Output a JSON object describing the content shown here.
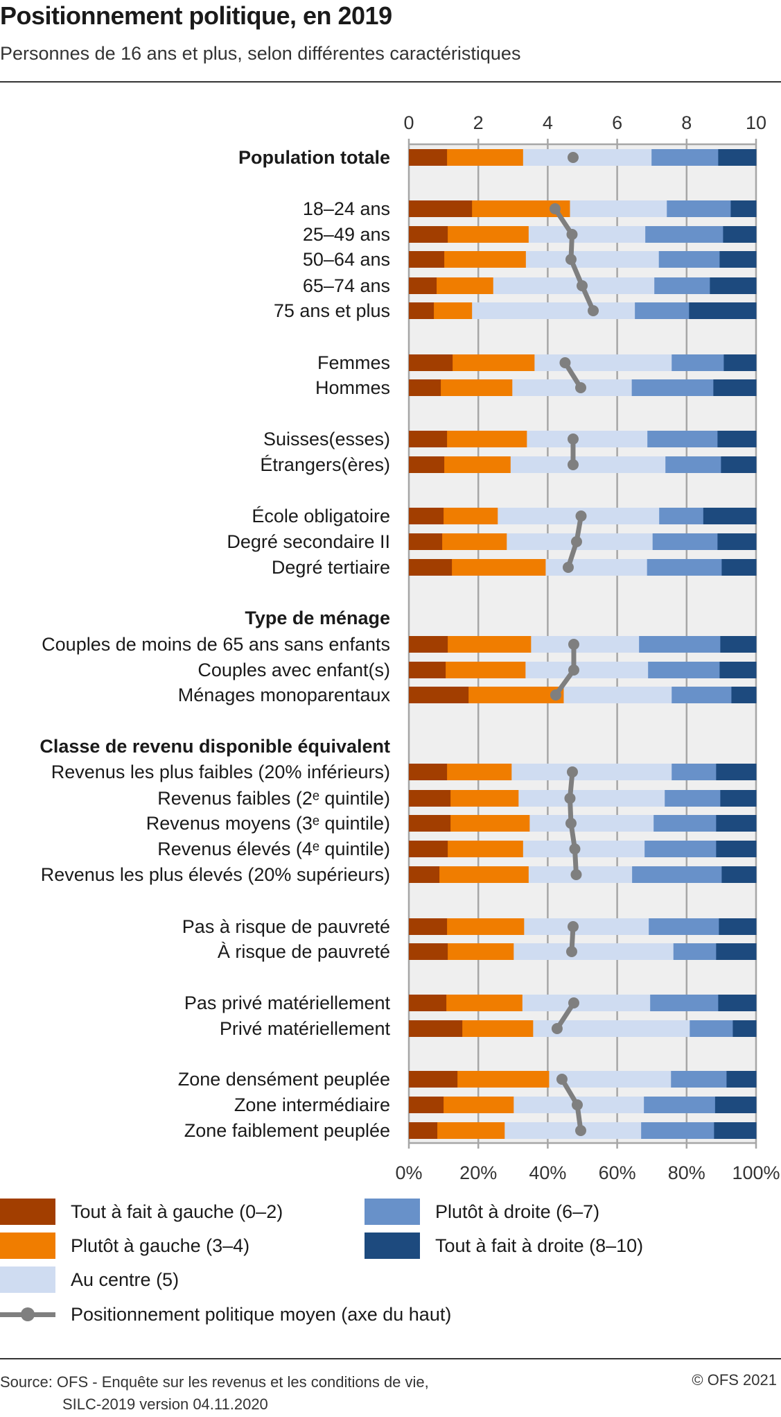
{
  "header": {
    "title": "Positionnement politique, en 2019",
    "subtitle": "Personnes de 16 ans et plus, selon différentes caractéristiques"
  },
  "chart_data": {
    "type": "bar",
    "orientation": "horizontal",
    "stacked": true,
    "title": "Positionnement politique, en 2019",
    "subtitle": "Personnes de 16 ans et plus, selon différentes caractéristiques",
    "xlabel_bottom": "",
    "xlabel_top": "",
    "bottom_axis": {
      "range": [
        0,
        100
      ],
      "ticks": [
        "0%",
        "20%",
        "40%",
        "60%",
        "80%",
        "100%"
      ],
      "unit": "%"
    },
    "top_axis": {
      "range": [
        0,
        10
      ],
      "ticks": [
        "0",
        "2",
        "4",
        "6",
        "8",
        "10"
      ]
    },
    "grid": true,
    "legend_position": "bottom",
    "series": [
      {
        "name": "Tout à fait à gauche (0–2)",
        "color": "#a23e00"
      },
      {
        "name": "Plutôt à gauche (3–4)",
        "color": "#f07d00"
      },
      {
        "name": "Au centre (5)",
        "color": "#cfdcf1"
      },
      {
        "name": "Plutôt à droite (6–7)",
        "color": "#6891c9"
      },
      {
        "name": "Tout à fait à droite (8–10)",
        "color": "#1d4a7e"
      }
    ],
    "mean_series": {
      "name": "Positionnement politique moyen (axe du haut)",
      "color": "#7f7f7f"
    },
    "rows": [
      {
        "label": "Population totale",
        "bold": true,
        "values": [
          11.0,
          21.9,
          37.0,
          19.2,
          10.9
        ],
        "mean": 4.73,
        "group": 0
      },
      {
        "label": "18–24 ans",
        "values": [
          18.2,
          28.2,
          27.9,
          18.4,
          7.3
        ],
        "mean": 4.21,
        "group": 1
      },
      {
        "label": "25–49 ans",
        "values": [
          11.2,
          23.3,
          33.6,
          22.4,
          9.5
        ],
        "mean": 4.7,
        "group": 1
      },
      {
        "label": "50–64 ans",
        "values": [
          10.2,
          23.5,
          38.3,
          17.5,
          10.5
        ],
        "mean": 4.67,
        "group": 1
      },
      {
        "label": "65–74 ans",
        "values": [
          8.0,
          16.3,
          46.4,
          16.0,
          13.3
        ],
        "mean": 4.99,
        "group": 1
      },
      {
        "label": "75 ans et plus",
        "values": [
          7.2,
          11.0,
          46.9,
          15.6,
          19.3
        ],
        "mean": 5.31,
        "group": 1
      },
      {
        "label": "Femmes",
        "values": [
          12.6,
          23.6,
          39.5,
          15.0,
          9.3
        ],
        "mean": 4.5,
        "group": 2
      },
      {
        "label": "Hommes",
        "values": [
          9.2,
          20.6,
          34.4,
          23.5,
          12.3
        ],
        "mean": 4.95,
        "group": 2
      },
      {
        "label": "Suisses(esses)",
        "values": [
          11.0,
          23.0,
          34.7,
          20.2,
          11.1
        ],
        "mean": 4.73,
        "group": 3
      },
      {
        "label": "Étrangers(ères)",
        "values": [
          10.2,
          19.1,
          44.6,
          16.0,
          10.1
        ],
        "mean": 4.73,
        "group": 3
      },
      {
        "label": "École obligatoire",
        "values": [
          10.0,
          15.6,
          46.5,
          12.7,
          15.2
        ],
        "mean": 4.96,
        "group": 4
      },
      {
        "label": "Degré secondaire II",
        "values": [
          9.6,
          18.6,
          42.0,
          18.7,
          11.1
        ],
        "mean": 4.83,
        "group": 4
      },
      {
        "label": "Degré tertiaire",
        "values": [
          12.4,
          27.0,
          29.2,
          21.5,
          9.9
        ],
        "mean": 4.59,
        "group": 4
      },
      {
        "label": "Type de ménage",
        "bold": true,
        "header": true
      },
      {
        "label": "Couples de moins de 65 ans sans enfants",
        "values": [
          11.2,
          24.0,
          31.1,
          23.4,
          10.3
        ],
        "mean": 4.75,
        "group": 5
      },
      {
        "label": "Couples avec enfant(s)",
        "values": [
          10.6,
          23.0,
          35.3,
          20.6,
          10.5
        ],
        "mean": 4.75,
        "group": 5
      },
      {
        "label": "Ménages monoparentaux",
        "values": [
          17.2,
          27.4,
          31.1,
          17.2,
          7.1
        ],
        "mean": 4.23,
        "group": 5
      },
      {
        "label": "Classe de revenu disponible équivalent",
        "bold": true,
        "header": true
      },
      {
        "label": "Revenus les plus faibles (20% inférieurs)",
        "values": [
          11.0,
          18.6,
          46.1,
          12.8,
          11.5
        ],
        "mean": 4.71,
        "group": 6
      },
      {
        "label": "Revenus faibles (2ᵉ quintile)",
        "values": [
          12.0,
          19.6,
          42.1,
          16.0,
          10.3
        ],
        "mean": 4.64,
        "group": 6
      },
      {
        "label": "Revenus moyens (3ᵉ quintile)",
        "values": [
          12.0,
          22.8,
          35.7,
          18.0,
          11.5
        ],
        "mean": 4.67,
        "group": 6
      },
      {
        "label": "Revenus élevés (4ᵉ quintile)",
        "values": [
          11.2,
          21.7,
          35.0,
          20.6,
          11.5
        ],
        "mean": 4.78,
        "group": 6
      },
      {
        "label": "Revenus les plus élevés (20% supérieurs)",
        "values": [
          8.8,
          25.7,
          29.8,
          25.8,
          9.9
        ],
        "mean": 4.82,
        "group": 6
      },
      {
        "label": "Pas à risque de pauvreté",
        "values": [
          11.0,
          22.2,
          35.9,
          20.2,
          10.7
        ],
        "mean": 4.73,
        "group": 7
      },
      {
        "label": "À risque de pauvreté",
        "values": [
          11.2,
          19.0,
          46.0,
          12.3,
          11.5
        ],
        "mean": 4.69,
        "group": 7
      },
      {
        "label": "Pas privé matériellement",
        "values": [
          10.8,
          21.9,
          36.8,
          19.6,
          10.9
        ],
        "mean": 4.75,
        "group": 8
      },
      {
        "label": "Privé matériellement",
        "values": [
          15.4,
          20.4,
          45.1,
          12.4,
          6.7
        ],
        "mean": 4.27,
        "group": 8
      },
      {
        "label": "Zone densément peuplée",
        "values": [
          14.0,
          26.4,
          35.1,
          16.0,
          8.5
        ],
        "mean": 4.41,
        "group": 9
      },
      {
        "label": "Zone intermédiaire",
        "values": [
          10.0,
          20.2,
          37.5,
          20.5,
          11.8
        ],
        "mean": 4.85,
        "group": 9
      },
      {
        "label": "Zone faiblement peuplée",
        "values": [
          8.2,
          19.4,
          39.3,
          21.0,
          12.1
        ],
        "mean": 4.95,
        "group": 9
      }
    ]
  },
  "legend": {
    "items": [
      {
        "label": "Tout à fait à gauche (0–2)",
        "color": "#a23e00"
      },
      {
        "label": "Plutôt à gauche (3–4)",
        "color": "#f07d00"
      },
      {
        "label": "Au centre (5)",
        "color": "#cfdcf1"
      },
      {
        "label": "Plutôt à droite (6–7)",
        "color": "#6891c9"
      },
      {
        "label": "Tout à fait à droite (8–10)",
        "color": "#1d4a7e"
      }
    ],
    "mean_label": "Positionnement politique moyen (axe du haut)"
  },
  "footer": {
    "source_line1": "Source: OFS - Enquête sur les revenus et les conditions de vie,",
    "source_line2": "SILC-2019 version 04.11.2020",
    "copyright": "© OFS 2021"
  }
}
